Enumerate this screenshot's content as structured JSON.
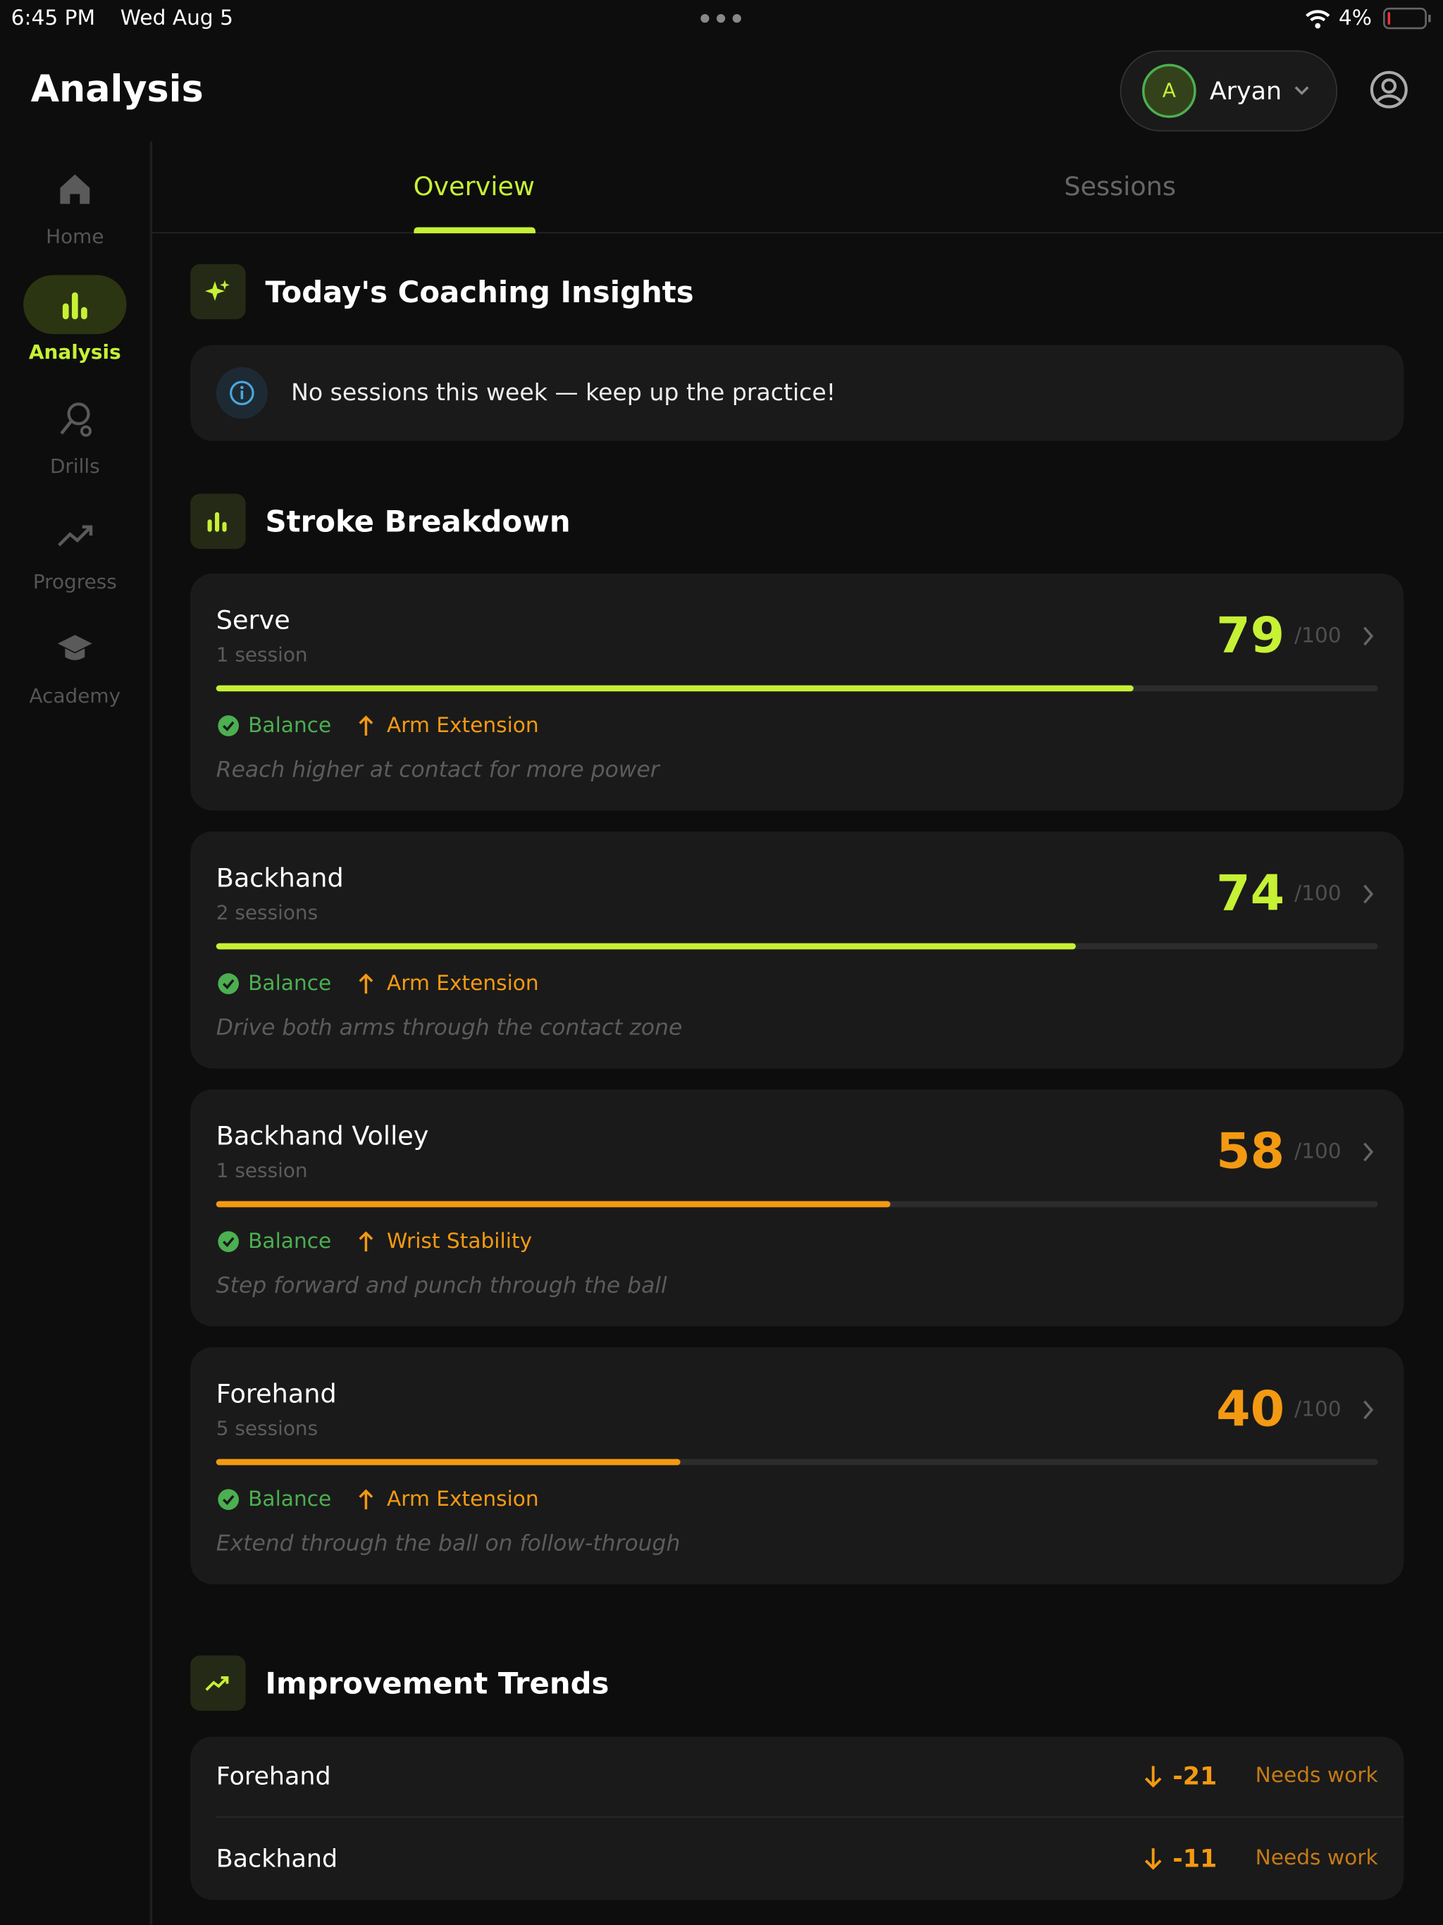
{
  "status_bar": {
    "time": "6:45 PM",
    "date": "Wed Aug 5",
    "battery": "4%"
  },
  "header": {
    "title": "Analysis",
    "avatar": "A",
    "user": "Aryan"
  },
  "sidebar": {
    "items": [
      "Home",
      "Analysis",
      "Drills",
      "Progress",
      "Academy"
    ],
    "active": 1
  },
  "tabs": {
    "items": [
      "Overview",
      "Sessions"
    ],
    "active": 0
  },
  "insights": {
    "title": "Today's Coaching Insights",
    "message": "No sessions this week — keep up the practice!"
  },
  "stroke_breakdown": {
    "title": "Stroke Breakdown",
    "strokes": [
      {
        "name": "Serve",
        "sessions": "1 session",
        "score": 79,
        "out_of": {
          "value": 100,
          "label": "/100"
        },
        "color": "#c6f135",
        "strength": "Balance",
        "focus": "Arm Extension",
        "tip": "Reach higher at contact for more power"
      },
      {
        "name": "Backhand",
        "sessions": "2 sessions",
        "score": 74,
        "out_of": {
          "value": 100,
          "label": "/100"
        },
        "color": "#c6f135",
        "strength": "Balance",
        "focus": "Arm Extension",
        "tip": "Drive both arms through the contact zone"
      },
      {
        "name": "Backhand Volley",
        "sessions": "1 session",
        "score": 58,
        "out_of": {
          "value": 100,
          "label": "/100"
        },
        "color": "#f39a12",
        "strength": "Balance",
        "focus": "Wrist Stability",
        "tip": "Step forward and punch through the ball"
      },
      {
        "name": "Forehand",
        "sessions": "5 sessions",
        "score": 40,
        "out_of": {
          "value": 100,
          "label": "/100"
        },
        "color": "#f39a12",
        "strength": "Balance",
        "focus": "Arm Extension",
        "tip": "Extend through the ball on follow-through"
      }
    ]
  },
  "trends": {
    "title": "Improvement Trends",
    "items": [
      {
        "name": "Forehand",
        "change": -21,
        "status": "Needs work"
      },
      {
        "name": "Backhand",
        "change": -11,
        "status": "Needs work"
      }
    ]
  }
}
